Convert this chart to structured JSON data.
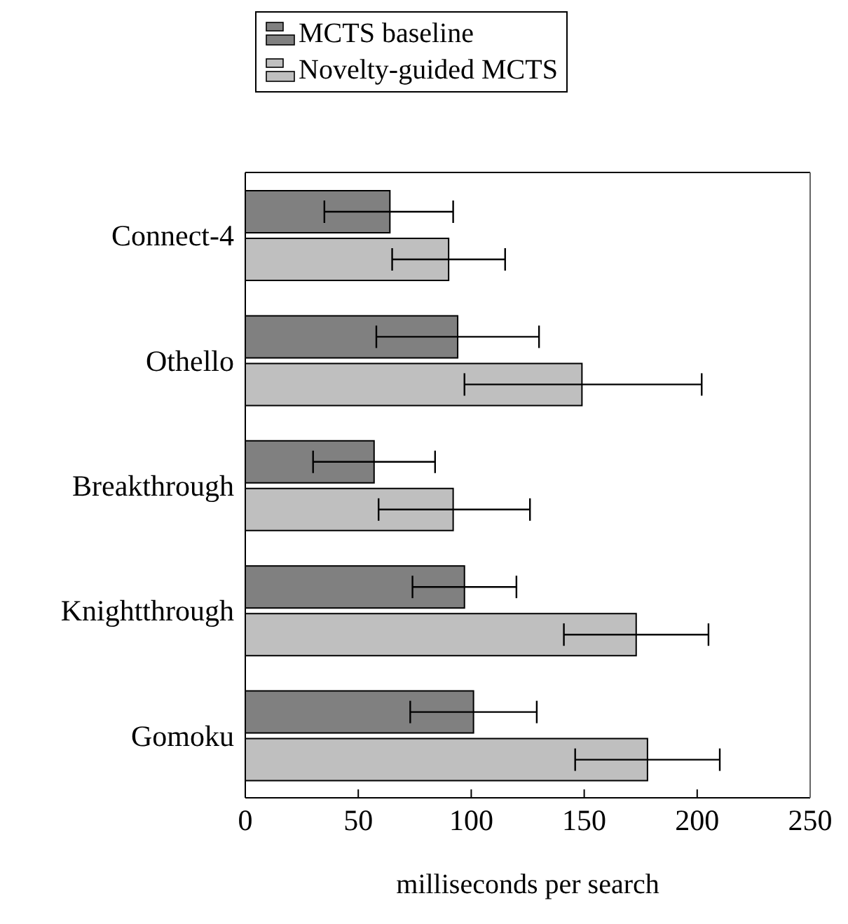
{
  "chart_data": {
    "type": "bar",
    "orientation": "horizontal",
    "xlabel": "milliseconds per search",
    "categories": [
      "Connect-4",
      "Othello",
      "Breakthrough",
      "Knightthrough",
      "Gomoku"
    ],
    "series": [
      {
        "name": "MCTS baseline",
        "color": "#808080",
        "values": [
          64,
          94,
          57,
          97,
          101
        ],
        "errors": [
          [
            35,
            92
          ],
          [
            58,
            130
          ],
          [
            30,
            84
          ],
          [
            74,
            120
          ],
          [
            73,
            129
          ]
        ]
      },
      {
        "name": "Novelty-guided MCTS",
        "color": "#bfbfbf",
        "values": [
          90,
          149,
          92,
          173,
          178
        ],
        "errors": [
          [
            65,
            115
          ],
          [
            97,
            202
          ],
          [
            59,
            126
          ],
          [
            141,
            205
          ],
          [
            146,
            210
          ]
        ]
      }
    ],
    "xlim": [
      0,
      250
    ],
    "xticks": [
      0,
      50,
      100,
      150,
      200,
      250
    ],
    "legend": "top"
  }
}
